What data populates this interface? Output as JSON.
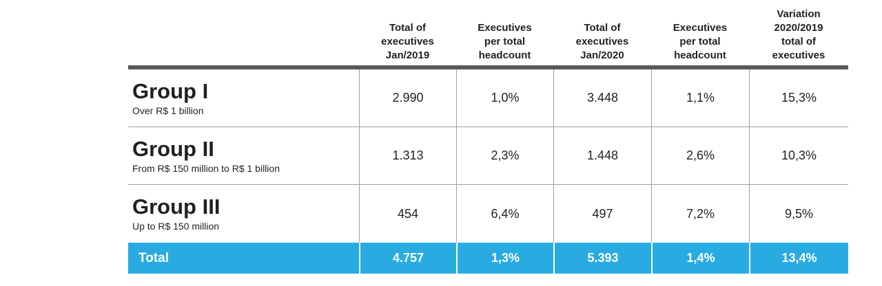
{
  "colors": {
    "accent_blue": "#29abe2",
    "divider_dark": "#58595b",
    "border_gray": "#9d9fa2",
    "text_dark": "#231f20",
    "total_text": "#ffffff"
  },
  "table": {
    "headers": [
      "Total of\nexecutives\nJan/2019",
      "Executives\nper total\nheadcount",
      "Total of\nexecutives\nJan/2020",
      "Executives\nper total\nheadcount",
      "Variation\n2020/2019\ntotal of\nexecutives"
    ],
    "rows": [
      {
        "group": "Group I",
        "description": "Over R$ 1 billion",
        "values": [
          "2.990",
          "1,0%",
          "3.448",
          "1,1%",
          "15,3%"
        ]
      },
      {
        "group": "Group II",
        "description": "From R$ 150 million to R$ 1 billion",
        "values": [
          "1.313",
          "2,3%",
          "1.448",
          "2,6%",
          "10,3%"
        ]
      },
      {
        "group": "Group III",
        "description": "Up to R$ 150 million",
        "values": [
          "454",
          "6,4%",
          "497",
          "7,2%",
          "9,5%"
        ]
      }
    ],
    "total": {
      "label": "Total",
      "values": [
        "4.757",
        "1,3%",
        "5.393",
        "1,4%",
        "13,4%"
      ]
    }
  }
}
